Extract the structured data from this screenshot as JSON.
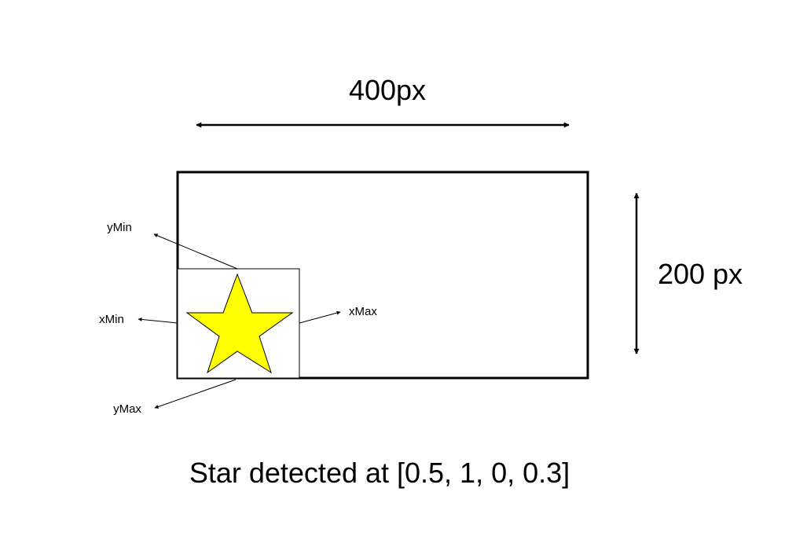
{
  "diagram": {
    "width_label": "400px",
    "height_label": "200 px",
    "labels": {
      "ymin": "yMin",
      "xmin": "xMin",
      "xmax": "xMax",
      "ymax": "yMax"
    },
    "caption": "Star detected at [0.5, 1, 0, 0.3]",
    "colors": {
      "star_fill": "#ffff00",
      "stroke": "#000000",
      "background": "#ffffff"
    },
    "icons": {
      "star": "star-icon"
    }
  }
}
